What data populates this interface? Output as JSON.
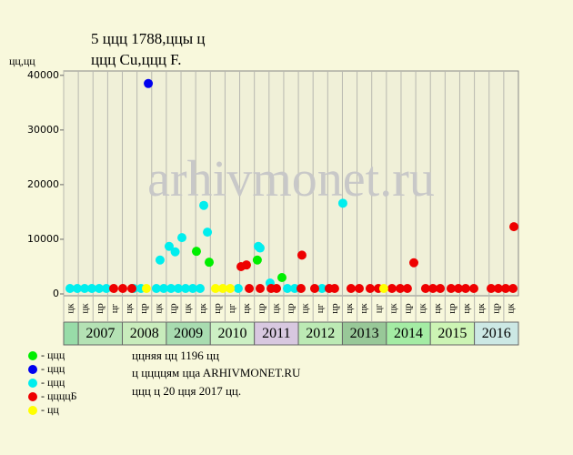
{
  "chart_data": {
    "type": "scatter",
    "title": "5 ццц 1788,ццы ц",
    "subtitle": "ццц Cu,ццц F.",
    "y_label": "цц,цц",
    "ylim": [
      0,
      40800
    ],
    "yticks": [
      0,
      10000,
      20000,
      30000,
      40000
    ],
    "xlim": [
      0,
      31
    ],
    "grid": true,
    "slot_labels": [
      "цк",
      "цк",
      "цр",
      "цг",
      "цк",
      "цр",
      "цк",
      "цр",
      "цк",
      "цк",
      "цр",
      "цг",
      "цк",
      "цр",
      "цк",
      "цр",
      "цк",
      "цг",
      "цр",
      "цк",
      "цк",
      "цг",
      "цк",
      "цр",
      "цк",
      "цк",
      "цр",
      "цк",
      "цк",
      "цр",
      "цк"
    ],
    "years": [
      {
        "label": "2007",
        "start": 1,
        "color": "#b4e2b4"
      },
      {
        "label": "2008",
        "start": 4,
        "color": "#c8ecbc"
      },
      {
        "label": "2009",
        "start": 7,
        "color": "#a8dcb0"
      },
      {
        "label": "2010",
        "start": 10,
        "color": "#ccf0c4"
      },
      {
        "label": "2011",
        "start": 13,
        "color": "#d8c8e0"
      },
      {
        "label": "2012",
        "start": 16,
        "color": "#bceab4"
      },
      {
        "label": "2013",
        "start": 19,
        "color": "#98c898"
      },
      {
        "label": "2014",
        "start": 22,
        "color": "#a4eca4"
      },
      {
        "label": "2015",
        "start": 25,
        "color": "#ccf4b4"
      },
      {
        "label": "2016",
        "start": 28,
        "color": "#cce8e4"
      }
    ],
    "first_block_color": "#98dca8",
    "series": [
      {
        "name": "- ццц",
        "color": "#00ee00",
        "x": [
          9.05,
          9.92,
          13.2,
          14.88
        ],
        "values": [
          7800,
          5800,
          6200,
          3000
        ]
      },
      {
        "name": "- ццц",
        "color": "#0000ee",
        "x": [
          5.77
        ],
        "values": [
          38500
        ]
      },
      {
        "name": "- ццц",
        "color": "#00eeee",
        "x": [
          0.43,
          0.93,
          1.43,
          1.92,
          2.42,
          2.91,
          4.77,
          5.27,
          6.32,
          6.82,
          7.32,
          7.81,
          8.31,
          8.8,
          9.3,
          11.9,
          15.25,
          15.75,
          17.61,
          6.57,
          7.19,
          7.6,
          8.06,
          9.55,
          9.8,
          13.27,
          13.39,
          14.07,
          19.03
        ],
        "values": [
          1000,
          1000,
          1000,
          1000,
          1000,
          1000,
          1000,
          1000,
          1000,
          1000,
          1000,
          1000,
          1000,
          1000,
          1000,
          1000,
          1000,
          1000,
          1000,
          6200,
          8700,
          7700,
          10300,
          16200,
          11300,
          8700,
          8400,
          2000,
          16600
        ]
      },
      {
        "name": "- ццццБ",
        "color": "#ee0000",
        "x": [
          3.41,
          4.03,
          4.65,
          12.09,
          12.46,
          12.65,
          13.39,
          14.14,
          14.51,
          16.24,
          16.18,
          17.11,
          18.1,
          18.47,
          19.59,
          20.15,
          20.89,
          21.45,
          22.38,
          22.94,
          23.43,
          23.87,
          24.67,
          25.17,
          25.67,
          26.41,
          26.91,
          27.4,
          27.96,
          29.14,
          29.63,
          30.13,
          30.63,
          30.69
        ],
        "values": [
          1000,
          1000,
          1000,
          5000,
          5300,
          1000,
          1000,
          1000,
          1000,
          7100,
          1000,
          1000,
          1000,
          1000,
          1000,
          1000,
          1000,
          1000,
          1000,
          1000,
          1000,
          5700,
          1000,
          1000,
          1000,
          1000,
          1000,
          1000,
          1000,
          1000,
          1000,
          1000,
          1000,
          12300
        ]
      },
      {
        "name": "- цц",
        "color": "#ffff00",
        "x": [
          5.64,
          10.35,
          10.85,
          11.35,
          21.82
        ],
        "values": [
          1000,
          1000,
          1000,
          1000,
          1000
        ]
      }
    ],
    "footer": [
      "ццняя цц 1196 цц",
      "ц ццццям ццa ARHIVMONET.RU",
      "ццц ц 20 цця 2017 цц."
    ],
    "watermark": "arhivmonet.ru"
  }
}
